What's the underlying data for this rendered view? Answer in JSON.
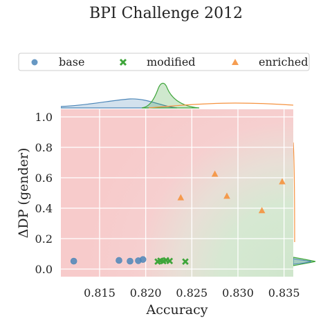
{
  "chart_data": {
    "type": "scatter",
    "title": "BPI Challenge 2012",
    "xlabel": "Accuracy",
    "ylabel": "ΔDP (gender)",
    "xlim": [
      0.8108,
      0.836
    ],
    "ylim": [
      -0.05,
      1.05
    ],
    "xticks": [
      "0.815",
      "0.820",
      "0.825",
      "0.830",
      "0.835"
    ],
    "xtick_values": [
      0.815,
      0.82,
      0.825,
      0.83,
      0.835
    ],
    "yticks": [
      "0.0",
      "0.2",
      "0.4",
      "0.6",
      "0.8",
      "1.0"
    ],
    "ytick_values": [
      0.0,
      0.2,
      0.4,
      0.6,
      0.8,
      1.0
    ],
    "grid": true,
    "legend_position": "top, above marginal plot, single row",
    "background": "red-to-green gradient (red: low accuracy / high ΔDP, green: high accuracy / low ΔDP)",
    "series": [
      {
        "name": "base",
        "marker": "circle",
        "color": "#4c86b8",
        "x": [
          0.8122,
          0.8171,
          0.8183,
          0.8192,
          0.8197
        ],
        "y": [
          0.052,
          0.057,
          0.052,
          0.055,
          0.063
        ]
      },
      {
        "name": "modified",
        "marker": "x",
        "color": "#3ea53a",
        "x": [
          0.8213,
          0.8216,
          0.8219,
          0.8222,
          0.8226,
          0.8243
        ],
        "y": [
          0.049,
          0.055,
          0.052,
          0.058,
          0.053,
          0.049
        ]
      },
      {
        "name": "enriched",
        "marker": "triangle",
        "color": "#f5923e",
        "x": [
          0.8238,
          0.8275,
          0.8288,
          0.8326,
          0.8348
        ],
        "y": [
          0.47,
          0.625,
          0.48,
          0.385,
          0.575
        ]
      }
    ]
  }
}
